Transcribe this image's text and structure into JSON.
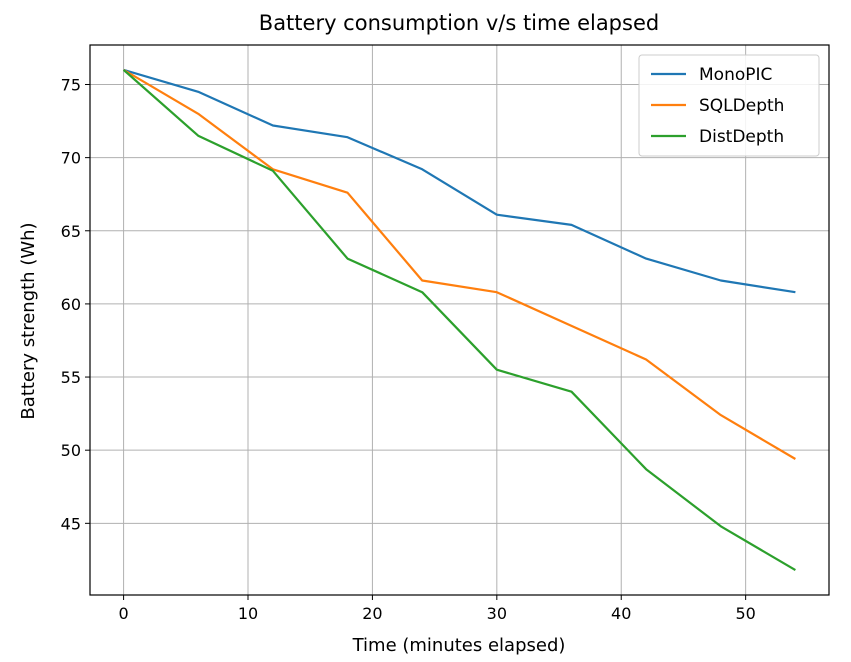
{
  "chart_data": {
    "type": "line",
    "title": "Battery consumption v/s time elapsed",
    "xlabel": "Time (minutes elapsed)",
    "ylabel": "Battery strength (Wh)",
    "xlim": [
      -2.7,
      56.7
    ],
    "ylim": [
      40.1,
      77.7
    ],
    "xticks": [
      0,
      10,
      20,
      30,
      40,
      50
    ],
    "yticks": [
      45,
      50,
      55,
      60,
      65,
      70,
      75
    ],
    "grid": true,
    "legend_position": "top-right",
    "x": [
      0,
      6,
      12,
      18,
      24,
      30,
      36,
      42,
      48,
      54
    ],
    "series": [
      {
        "name": "MonoPIC",
        "color": "#1f77b4",
        "values": [
          76.0,
          74.5,
          72.2,
          71.4,
          69.2,
          66.1,
          65.4,
          63.1,
          61.6,
          60.8
        ]
      },
      {
        "name": "SQLDepth",
        "color": "#ff7f0e",
        "values": [
          76.0,
          73.0,
          69.2,
          67.6,
          61.6,
          60.8,
          58.5,
          56.2,
          52.4,
          49.4
        ]
      },
      {
        "name": "DistDepth",
        "color": "#2ca02c",
        "values": [
          76.0,
          71.5,
          69.1,
          63.1,
          60.8,
          55.5,
          54.0,
          48.7,
          44.8,
          41.8
        ]
      }
    ]
  }
}
